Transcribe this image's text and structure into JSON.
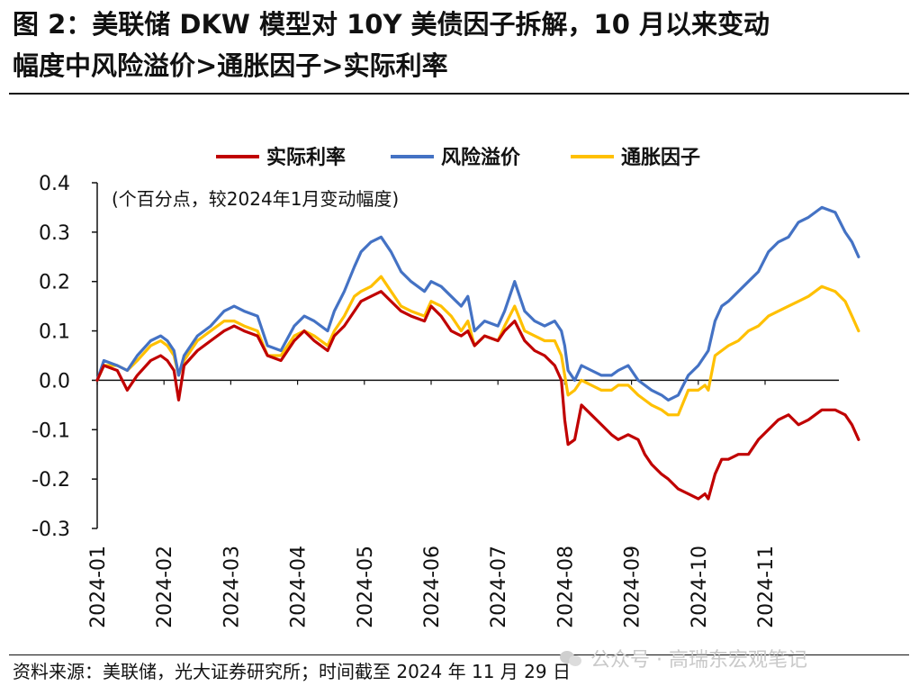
{
  "title": {
    "line1": "图 2：美联储 DKW 模型对 10Y 美债因子拆解，10 月以来变动",
    "line2": "幅度中风险溢价>通胀因子>实际利率"
  },
  "source": "资料来源：美联储，光大证券研究所；时间截至 2024 年 11 月 29 日",
  "watermark": "公众号 · 高瑞东宏观笔记",
  "chart_data": {
    "type": "line",
    "annotation": "(个百分点，较2024年1月变动幅度)",
    "ylim": [
      -0.3,
      0.4
    ],
    "yticks": [
      "0.4",
      "0.3",
      "0.2",
      "0.1",
      "0.0",
      "-0.1",
      "-0.2",
      "-0.3"
    ],
    "xticks": [
      "2024-01",
      "2024-02",
      "2024-03",
      "2024-04",
      "2024-05",
      "2024-06",
      "2024-07",
      "2024-08",
      "2024-09",
      "2024-10",
      "2024-11"
    ],
    "x_range_months": [
      0,
      11
    ],
    "legend_position": "top-center",
    "grid": false,
    "series": [
      {
        "name": "实际利率",
        "color": "#C00000",
        "points": [
          [
            0,
            0.0
          ],
          [
            0.1,
            0.03
          ],
          [
            0.3,
            0.02
          ],
          [
            0.45,
            -0.02
          ],
          [
            0.6,
            0.01
          ],
          [
            0.8,
            0.04
          ],
          [
            0.95,
            0.05
          ],
          [
            1.05,
            0.04
          ],
          [
            1.15,
            0.02
          ],
          [
            1.22,
            -0.04
          ],
          [
            1.3,
            0.03
          ],
          [
            1.5,
            0.06
          ],
          [
            1.7,
            0.08
          ],
          [
            1.9,
            0.1
          ],
          [
            2.05,
            0.11
          ],
          [
            2.2,
            0.1
          ],
          [
            2.4,
            0.09
          ],
          [
            2.55,
            0.05
          ],
          [
            2.75,
            0.04
          ],
          [
            2.95,
            0.08
          ],
          [
            3.1,
            0.1
          ],
          [
            3.25,
            0.08
          ],
          [
            3.45,
            0.06
          ],
          [
            3.55,
            0.09
          ],
          [
            3.7,
            0.11
          ],
          [
            3.85,
            0.14
          ],
          [
            3.95,
            0.16
          ],
          [
            4.1,
            0.17
          ],
          [
            4.25,
            0.18
          ],
          [
            4.4,
            0.16
          ],
          [
            4.55,
            0.14
          ],
          [
            4.7,
            0.13
          ],
          [
            4.9,
            0.12
          ],
          [
            5.0,
            0.15
          ],
          [
            5.15,
            0.13
          ],
          [
            5.3,
            0.1
          ],
          [
            5.45,
            0.09
          ],
          [
            5.55,
            0.1
          ],
          [
            5.65,
            0.07
          ],
          [
            5.8,
            0.09
          ],
          [
            6.0,
            0.08
          ],
          [
            6.1,
            0.1
          ],
          [
            6.25,
            0.12
          ],
          [
            6.4,
            0.08
          ],
          [
            6.55,
            0.06
          ],
          [
            6.7,
            0.05
          ],
          [
            6.85,
            0.03
          ],
          [
            6.95,
            0.0
          ],
          [
            7.0,
            -0.08
          ],
          [
            7.05,
            -0.13
          ],
          [
            7.15,
            -0.12
          ],
          [
            7.25,
            -0.05
          ],
          [
            7.4,
            -0.07
          ],
          [
            7.55,
            -0.09
          ],
          [
            7.7,
            -0.11
          ],
          [
            7.8,
            -0.12
          ],
          [
            7.95,
            -0.11
          ],
          [
            8.1,
            -0.12
          ],
          [
            8.2,
            -0.15
          ],
          [
            8.3,
            -0.17
          ],
          [
            8.45,
            -0.19
          ],
          [
            8.55,
            -0.2
          ],
          [
            8.7,
            -0.22
          ],
          [
            8.85,
            -0.23
          ],
          [
            9.0,
            -0.24
          ],
          [
            9.1,
            -0.23
          ],
          [
            9.15,
            -0.24
          ],
          [
            9.25,
            -0.19
          ],
          [
            9.35,
            -0.16
          ],
          [
            9.45,
            -0.16
          ],
          [
            9.6,
            -0.15
          ],
          [
            9.75,
            -0.15
          ],
          [
            9.9,
            -0.12
          ],
          [
            10.05,
            -0.1
          ],
          [
            10.2,
            -0.08
          ],
          [
            10.35,
            -0.07
          ],
          [
            10.5,
            -0.09
          ],
          [
            10.65,
            -0.08
          ],
          [
            10.85,
            -0.06
          ],
          [
            11.05,
            -0.06
          ],
          [
            11.2,
            -0.07
          ],
          [
            11.3,
            -0.09
          ],
          [
            11.4,
            -0.12
          ]
        ]
      },
      {
        "name": "风险溢价",
        "color": "#4472C4",
        "points": [
          [
            0,
            0.0
          ],
          [
            0.1,
            0.04
          ],
          [
            0.3,
            0.03
          ],
          [
            0.45,
            0.02
          ],
          [
            0.6,
            0.05
          ],
          [
            0.8,
            0.08
          ],
          [
            0.95,
            0.09
          ],
          [
            1.05,
            0.08
          ],
          [
            1.15,
            0.06
          ],
          [
            1.22,
            0.01
          ],
          [
            1.3,
            0.05
          ],
          [
            1.5,
            0.09
          ],
          [
            1.7,
            0.11
          ],
          [
            1.9,
            0.14
          ],
          [
            2.05,
            0.15
          ],
          [
            2.2,
            0.14
          ],
          [
            2.4,
            0.13
          ],
          [
            2.55,
            0.07
          ],
          [
            2.75,
            0.06
          ],
          [
            2.95,
            0.11
          ],
          [
            3.1,
            0.13
          ],
          [
            3.25,
            0.12
          ],
          [
            3.45,
            0.1
          ],
          [
            3.55,
            0.14
          ],
          [
            3.7,
            0.18
          ],
          [
            3.85,
            0.23
          ],
          [
            3.95,
            0.26
          ],
          [
            4.1,
            0.28
          ],
          [
            4.25,
            0.29
          ],
          [
            4.4,
            0.26
          ],
          [
            4.55,
            0.22
          ],
          [
            4.7,
            0.2
          ],
          [
            4.9,
            0.18
          ],
          [
            5.0,
            0.2
          ],
          [
            5.15,
            0.19
          ],
          [
            5.3,
            0.17
          ],
          [
            5.45,
            0.15
          ],
          [
            5.55,
            0.17
          ],
          [
            5.65,
            0.1
          ],
          [
            5.8,
            0.12
          ],
          [
            6.0,
            0.11
          ],
          [
            6.1,
            0.14
          ],
          [
            6.25,
            0.2
          ],
          [
            6.4,
            0.14
          ],
          [
            6.55,
            0.12
          ],
          [
            6.7,
            0.11
          ],
          [
            6.85,
            0.12
          ],
          [
            6.95,
            0.1
          ],
          [
            7.0,
            0.07
          ],
          [
            7.05,
            0.02
          ],
          [
            7.15,
            0.0
          ],
          [
            7.25,
            0.03
          ],
          [
            7.4,
            0.02
          ],
          [
            7.55,
            0.01
          ],
          [
            7.7,
            0.01
          ],
          [
            7.8,
            0.02
          ],
          [
            7.95,
            0.03
          ],
          [
            8.1,
            0.0
          ],
          [
            8.2,
            -0.01
          ],
          [
            8.3,
            -0.02
          ],
          [
            8.45,
            -0.03
          ],
          [
            8.55,
            -0.04
          ],
          [
            8.7,
            -0.03
          ],
          [
            8.85,
            0.01
          ],
          [
            9.0,
            0.03
          ],
          [
            9.1,
            0.05
          ],
          [
            9.15,
            0.06
          ],
          [
            9.25,
            0.12
          ],
          [
            9.35,
            0.15
          ],
          [
            9.45,
            0.16
          ],
          [
            9.6,
            0.18
          ],
          [
            9.75,
            0.2
          ],
          [
            9.9,
            0.22
          ],
          [
            10.05,
            0.26
          ],
          [
            10.2,
            0.28
          ],
          [
            10.35,
            0.29
          ],
          [
            10.5,
            0.32
          ],
          [
            10.65,
            0.33
          ],
          [
            10.85,
            0.35
          ],
          [
            11.05,
            0.34
          ],
          [
            11.2,
            0.3
          ],
          [
            11.3,
            0.28
          ],
          [
            11.4,
            0.25
          ]
        ]
      },
      {
        "name": "通胀因子",
        "color": "#FFC000",
        "points": [
          [
            0,
            0.0
          ],
          [
            0.1,
            0.03
          ],
          [
            0.3,
            0.03
          ],
          [
            0.45,
            0.02
          ],
          [
            0.6,
            0.04
          ],
          [
            0.8,
            0.07
          ],
          [
            0.95,
            0.08
          ],
          [
            1.05,
            0.07
          ],
          [
            1.15,
            0.05
          ],
          [
            1.22,
            0.01
          ],
          [
            1.3,
            0.04
          ],
          [
            1.5,
            0.08
          ],
          [
            1.7,
            0.1
          ],
          [
            1.9,
            0.12
          ],
          [
            2.05,
            0.12
          ],
          [
            2.2,
            0.11
          ],
          [
            2.4,
            0.1
          ],
          [
            2.55,
            0.05
          ],
          [
            2.75,
            0.05
          ],
          [
            2.95,
            0.09
          ],
          [
            3.1,
            0.1
          ],
          [
            3.25,
            0.09
          ],
          [
            3.45,
            0.07
          ],
          [
            3.55,
            0.1
          ],
          [
            3.7,
            0.13
          ],
          [
            3.85,
            0.17
          ],
          [
            3.95,
            0.18
          ],
          [
            4.1,
            0.19
          ],
          [
            4.25,
            0.21
          ],
          [
            4.4,
            0.18
          ],
          [
            4.55,
            0.15
          ],
          [
            4.7,
            0.14
          ],
          [
            4.9,
            0.13
          ],
          [
            5.0,
            0.16
          ],
          [
            5.15,
            0.15
          ],
          [
            5.3,
            0.13
          ],
          [
            5.45,
            0.1
          ],
          [
            5.55,
            0.12
          ],
          [
            5.65,
            0.07
          ],
          [
            5.8,
            0.09
          ],
          [
            6.0,
            0.08
          ],
          [
            6.1,
            0.11
          ],
          [
            6.25,
            0.15
          ],
          [
            6.4,
            0.1
          ],
          [
            6.55,
            0.09
          ],
          [
            6.7,
            0.08
          ],
          [
            6.85,
            0.08
          ],
          [
            6.95,
            0.05
          ],
          [
            7.0,
            0.01
          ],
          [
            7.05,
            -0.03
          ],
          [
            7.15,
            -0.02
          ],
          [
            7.25,
            0.0
          ],
          [
            7.4,
            -0.01
          ],
          [
            7.55,
            -0.02
          ],
          [
            7.7,
            -0.02
          ],
          [
            7.8,
            -0.01
          ],
          [
            7.95,
            -0.01
          ],
          [
            8.1,
            -0.03
          ],
          [
            8.2,
            -0.04
          ],
          [
            8.3,
            -0.05
          ],
          [
            8.45,
            -0.06
          ],
          [
            8.55,
            -0.07
          ],
          [
            8.7,
            -0.07
          ],
          [
            8.85,
            -0.02
          ],
          [
            9.0,
            -0.02
          ],
          [
            9.1,
            -0.01
          ],
          [
            9.15,
            -0.02
          ],
          [
            9.25,
            0.05
          ],
          [
            9.35,
            0.06
          ],
          [
            9.45,
            0.07
          ],
          [
            9.6,
            0.08
          ],
          [
            9.75,
            0.1
          ],
          [
            9.9,
            0.11
          ],
          [
            10.05,
            0.13
          ],
          [
            10.2,
            0.14
          ],
          [
            10.35,
            0.15
          ],
          [
            10.5,
            0.16
          ],
          [
            10.65,
            0.17
          ],
          [
            10.85,
            0.19
          ],
          [
            11.05,
            0.18
          ],
          [
            11.2,
            0.16
          ],
          [
            11.3,
            0.13
          ],
          [
            11.4,
            0.1
          ]
        ]
      }
    ]
  }
}
